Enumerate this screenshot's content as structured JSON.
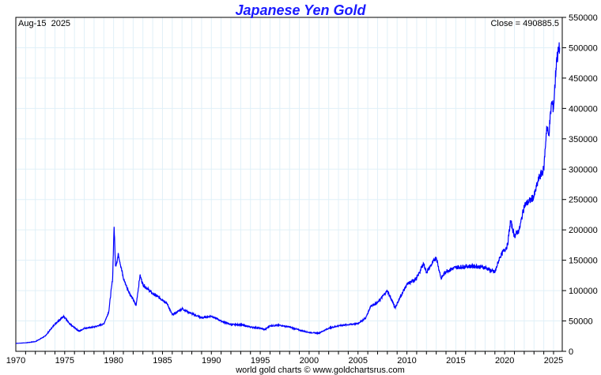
{
  "chart_data": {
    "type": "line",
    "title": "Japanese Yen Gold",
    "date_label": "Aug-15  2025",
    "close_label": "Close = 490885.5",
    "footer": "world gold charts © www.goldchartsrus.com",
    "xlim": [
      1970,
      2026
    ],
    "ylim": [
      0,
      550000
    ],
    "x_ticks": [
      1970,
      1975,
      1980,
      1985,
      1990,
      1995,
      2000,
      2005,
      2010,
      2015,
      2020,
      2025
    ],
    "y_ticks": [
      0,
      50000,
      100000,
      150000,
      200000,
      250000,
      300000,
      350000,
      400000,
      450000,
      500000,
      550000
    ],
    "grid": true,
    "colors": {
      "line": "#0000ff",
      "title": "#1a1aff",
      "grid": "#e0f0f8"
    },
    "series": [
      {
        "name": "JPY Gold",
        "points": [
          [
            1970,
            13000
          ],
          [
            1971,
            14000
          ],
          [
            1972,
            16000
          ],
          [
            1973,
            25000
          ],
          [
            1974,
            45000
          ],
          [
            1974.9,
            58000
          ],
          [
            1975.5,
            45000
          ],
          [
            1976.5,
            33000
          ],
          [
            1977,
            38000
          ],
          [
            1978,
            40000
          ],
          [
            1979,
            45000
          ],
          [
            1979.5,
            65000
          ],
          [
            1979.9,
            120000
          ],
          [
            1980.05,
            205000
          ],
          [
            1980.2,
            140000
          ],
          [
            1980.5,
            160000
          ],
          [
            1981,
            120000
          ],
          [
            1981.5,
            100000
          ],
          [
            1982,
            85000
          ],
          [
            1982.3,
            75000
          ],
          [
            1982.7,
            125000
          ],
          [
            1983,
            110000
          ],
          [
            1984,
            95000
          ],
          [
            1985,
            85000
          ],
          [
            1985.5,
            78000
          ],
          [
            1986,
            60000
          ],
          [
            1987,
            70000
          ],
          [
            1988,
            62000
          ],
          [
            1989,
            55000
          ],
          [
            1990,
            58000
          ],
          [
            1991,
            50000
          ],
          [
            1992,
            44000
          ],
          [
            1993,
            44000
          ],
          [
            1994,
            40000
          ],
          [
            1995,
            38000
          ],
          [
            1995.5,
            36000
          ],
          [
            1996,
            42000
          ],
          [
            1997,
            43000
          ],
          [
            1998,
            40000
          ],
          [
            1999,
            35000
          ],
          [
            2000,
            31000
          ],
          [
            2001,
            30000
          ],
          [
            2002,
            38000
          ],
          [
            2003,
            42000
          ],
          [
            2004,
            44000
          ],
          [
            2005,
            46000
          ],
          [
            2005.8,
            55000
          ],
          [
            2006.3,
            75000
          ],
          [
            2007,
            80000
          ],
          [
            2008,
            100000
          ],
          [
            2008.8,
            72000
          ],
          [
            2009.5,
            95000
          ],
          [
            2010,
            110000
          ],
          [
            2011,
            120000
          ],
          [
            2011.7,
            145000
          ],
          [
            2012,
            130000
          ],
          [
            2013,
            155000
          ],
          [
            2013.5,
            120000
          ],
          [
            2014,
            132000
          ],
          [
            2015,
            138000
          ],
          [
            2016,
            140000
          ],
          [
            2017,
            140000
          ],
          [
            2018,
            138000
          ],
          [
            2019,
            130000
          ],
          [
            2019.5,
            155000
          ],
          [
            2020.3,
            175000
          ],
          [
            2020.6,
            215000
          ],
          [
            2021,
            190000
          ],
          [
            2021.5,
            200000
          ],
          [
            2022,
            240000
          ],
          [
            2022.7,
            250000
          ],
          [
            2023,
            255000
          ],
          [
            2023.5,
            285000
          ],
          [
            2024,
            300000
          ],
          [
            2024.3,
            370000
          ],
          [
            2024.5,
            355000
          ],
          [
            2024.8,
            410000
          ],
          [
            2025,
            400000
          ],
          [
            2025.3,
            480000
          ],
          [
            2025.62,
            500000
          ]
        ]
      }
    ]
  }
}
